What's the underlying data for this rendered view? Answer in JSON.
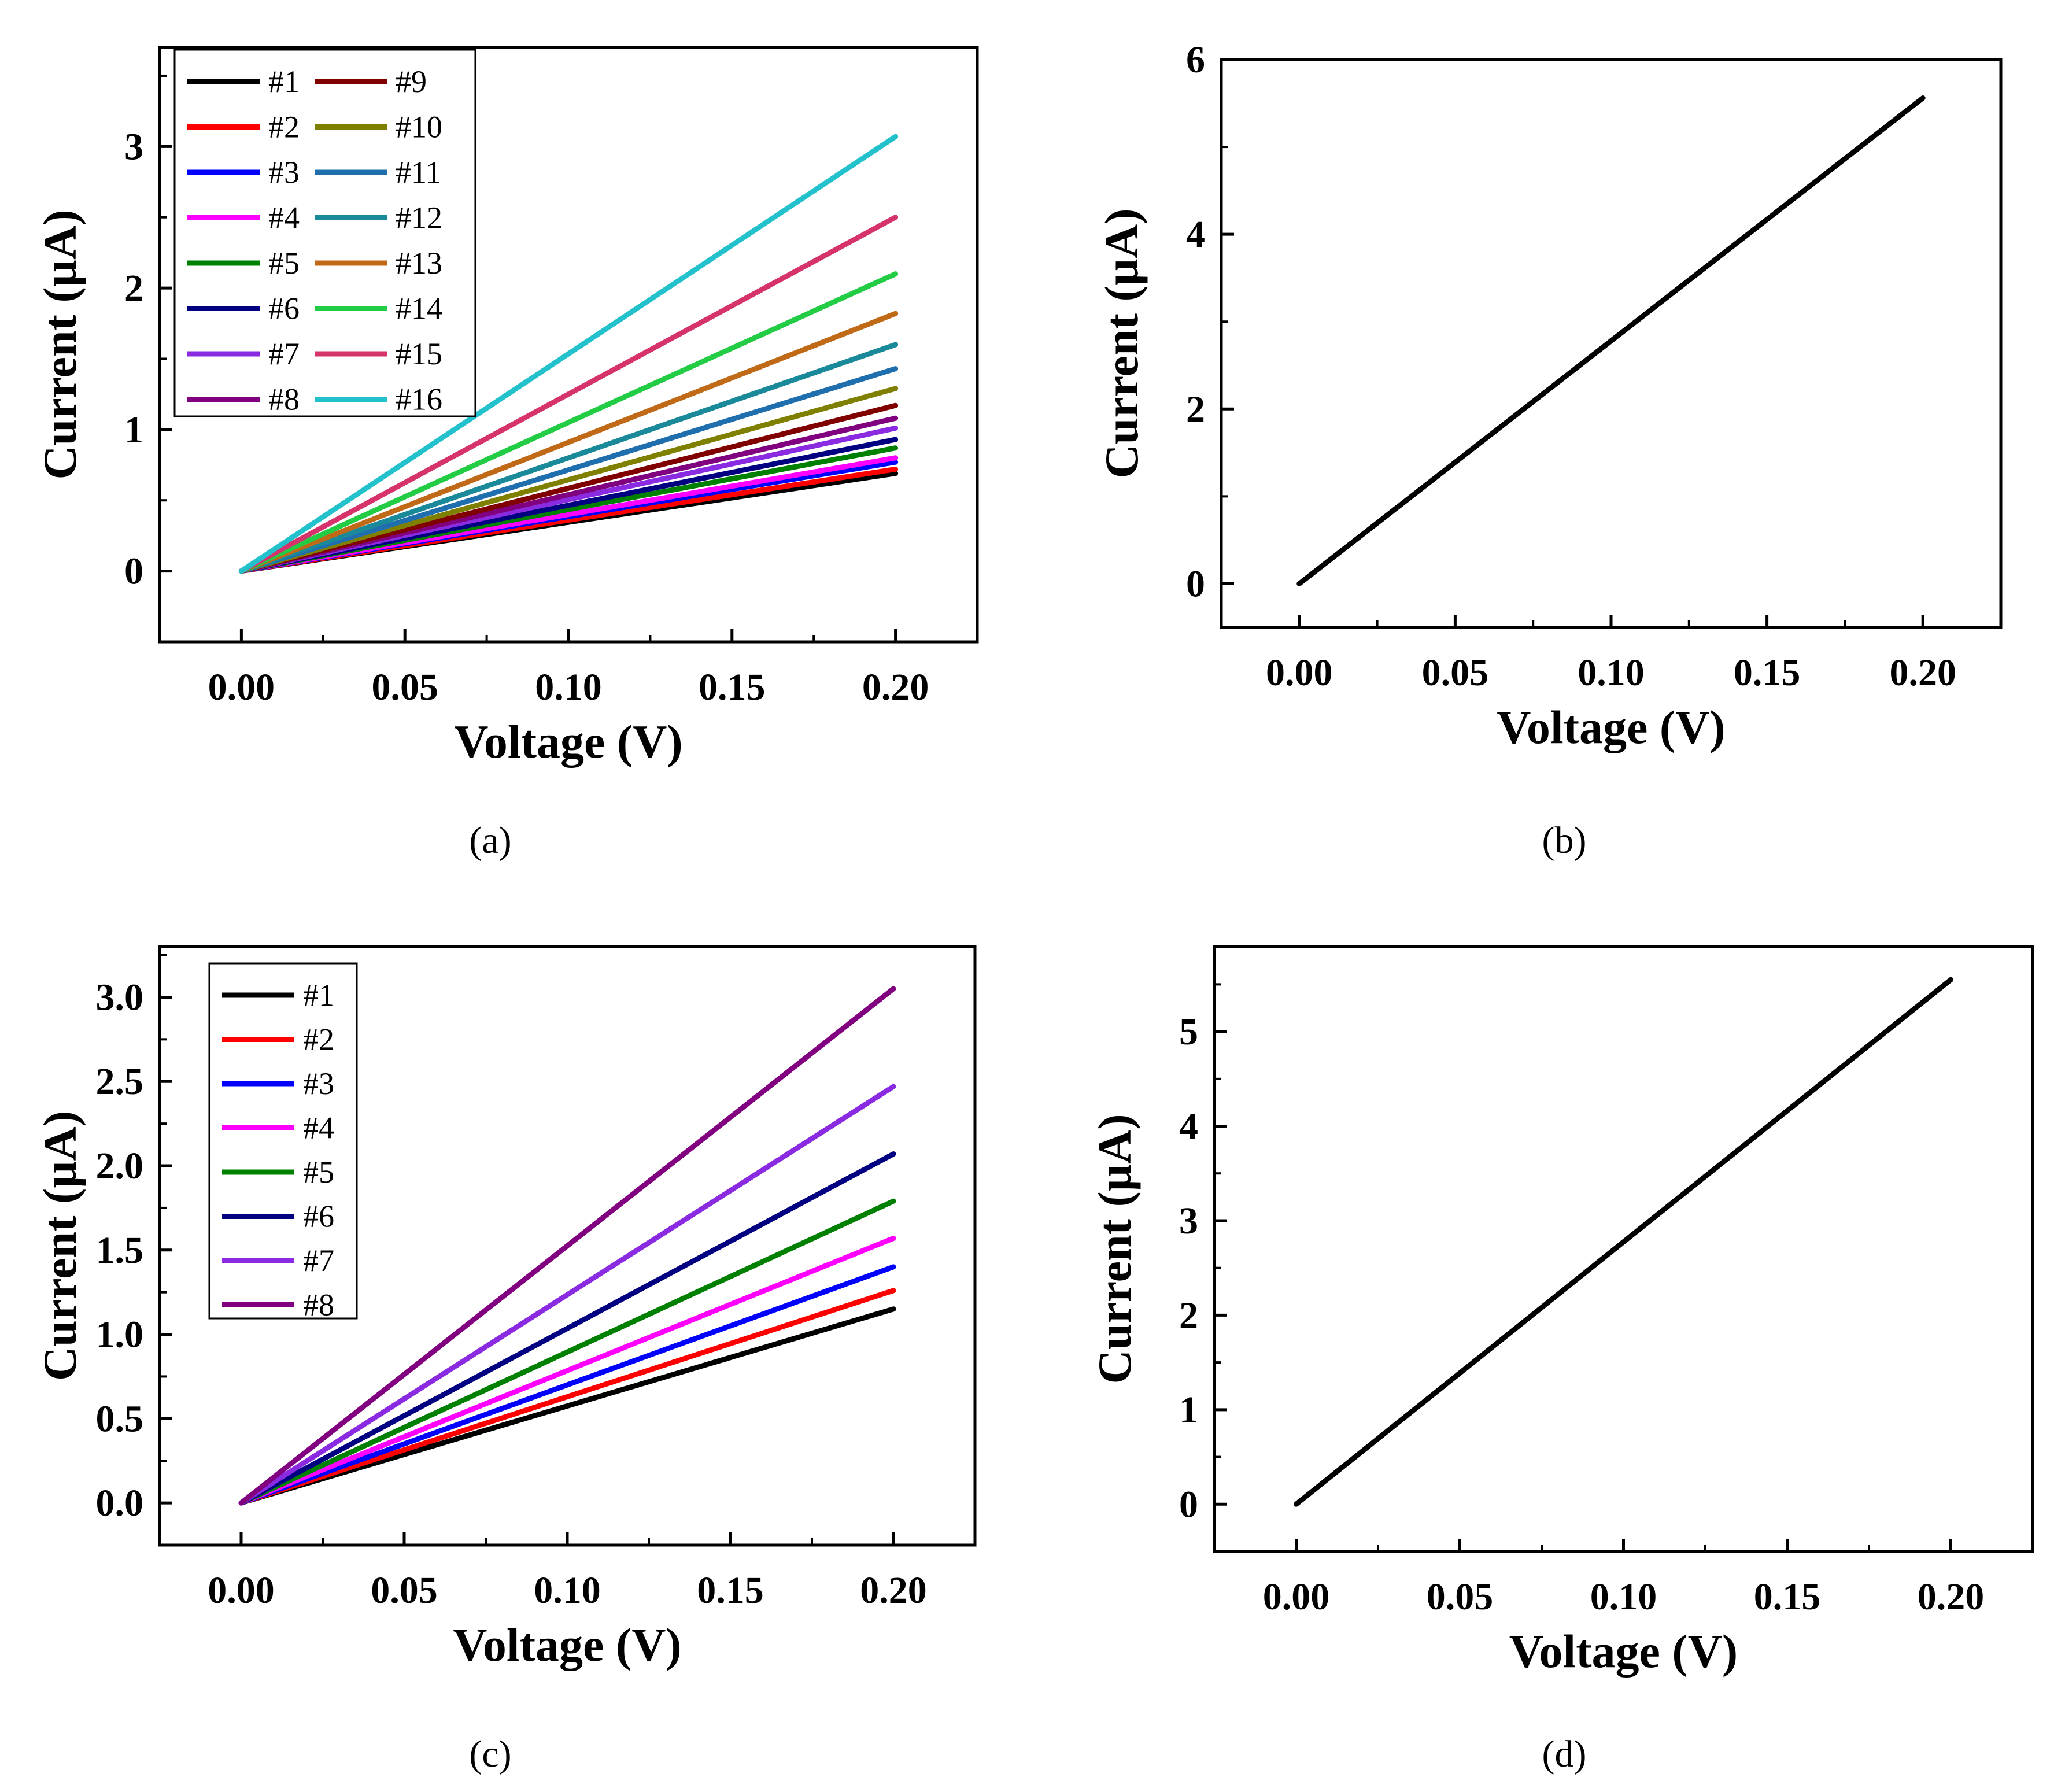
{
  "figure": {
    "panels": [
      "a",
      "b",
      "c",
      "d"
    ]
  },
  "chart_data": [
    {
      "id": "a",
      "type": "line",
      "caption": "(a)",
      "xlabel": "Voltage (V)",
      "ylabel": "Current (µA)",
      "xlim": [
        -0.025,
        0.225
      ],
      "ylim": [
        -0.5,
        3.7
      ],
      "xticks": [
        0.0,
        0.05,
        0.1,
        0.15,
        0.2
      ],
      "xtick_labels": [
        "0.00",
        "0.05",
        "0.10",
        "0.15",
        "0.20"
      ],
      "yticks": [
        0,
        1,
        2,
        3
      ],
      "ytick_labels": [
        "0",
        "1",
        "2",
        "3"
      ],
      "legend": {
        "placement": "top-left",
        "columns": 2
      },
      "x": [
        0.0,
        0.2
      ],
      "series": [
        {
          "name": "#1",
          "color": "#000000",
          "values": [
            0,
            0.69
          ]
        },
        {
          "name": "#2",
          "color": "#ff0000",
          "values": [
            0,
            0.72
          ]
        },
        {
          "name": "#3",
          "color": "#0000ff",
          "values": [
            0,
            0.77
          ]
        },
        {
          "name": "#4",
          "color": "#ff00ff",
          "values": [
            0,
            0.8
          ]
        },
        {
          "name": "#5",
          "color": "#008000",
          "values": [
            0,
            0.87
          ]
        },
        {
          "name": "#6",
          "color": "#000080",
          "values": [
            0,
            0.93
          ]
        },
        {
          "name": "#7",
          "color": "#8a2be2",
          "values": [
            0,
            1.01
          ]
        },
        {
          "name": "#8",
          "color": "#800080",
          "values": [
            0,
            1.08
          ]
        },
        {
          "name": "#9",
          "color": "#800000",
          "values": [
            0,
            1.17
          ]
        },
        {
          "name": "#10",
          "color": "#808000",
          "values": [
            0,
            1.29
          ]
        },
        {
          "name": "#11",
          "color": "#1f6fae",
          "values": [
            0,
            1.43
          ]
        },
        {
          "name": "#12",
          "color": "#1a8a9a",
          "values": [
            0,
            1.6
          ]
        },
        {
          "name": "#13",
          "color": "#c06a18",
          "values": [
            0,
            1.82
          ]
        },
        {
          "name": "#14",
          "color": "#22cc44",
          "values": [
            0,
            2.1
          ]
        },
        {
          "name": "#15",
          "color": "#d6336c",
          "values": [
            0,
            2.5
          ]
        },
        {
          "name": "#16",
          "color": "#22c1cc",
          "values": [
            0,
            3.07
          ]
        }
      ]
    },
    {
      "id": "b",
      "type": "line",
      "caption": "(b)",
      "xlabel": "Voltage (V)",
      "ylabel": "Current (µA)",
      "xlim": [
        -0.025,
        0.225
      ],
      "ylim": [
        -0.5,
        6.0
      ],
      "xticks": [
        0.0,
        0.05,
        0.1,
        0.15,
        0.2
      ],
      "xtick_labels": [
        "0.00",
        "0.05",
        "0.10",
        "0.15",
        "0.20"
      ],
      "yticks": [
        0,
        2,
        4,
        6
      ],
      "ytick_labels": [
        "0",
        "2",
        "4",
        "6"
      ],
      "legend": null,
      "x": [
        0.0,
        0.2
      ],
      "series": [
        {
          "name": "",
          "color": "#000000",
          "values": [
            0,
            5.56
          ]
        }
      ]
    },
    {
      "id": "c",
      "type": "line",
      "caption": "(c)",
      "xlabel": "Voltage (V)",
      "ylabel": "Current (µA)",
      "xlim": [
        -0.025,
        0.225
      ],
      "ylim": [
        -0.25,
        3.3
      ],
      "xticks": [
        0.0,
        0.05,
        0.1,
        0.15,
        0.2
      ],
      "xtick_labels": [
        "0.00",
        "0.05",
        "0.10",
        "0.15",
        "0.20"
      ],
      "yticks": [
        0.0,
        0.5,
        1.0,
        1.5,
        2.0,
        2.5,
        3.0
      ],
      "ytick_labels": [
        "0.0",
        "0.5",
        "1.0",
        "1.5",
        "2.0",
        "2.5",
        "3.0"
      ],
      "legend": {
        "placement": "top-left",
        "columns": 1
      },
      "x": [
        0.0,
        0.2
      ],
      "series": [
        {
          "name": "#1",
          "color": "#000000",
          "values": [
            0,
            1.15
          ]
        },
        {
          "name": "#2",
          "color": "#ff0000",
          "values": [
            0,
            1.26
          ]
        },
        {
          "name": "#3",
          "color": "#0000ff",
          "values": [
            0,
            1.4
          ]
        },
        {
          "name": "#4",
          "color": "#ff00ff",
          "values": [
            0,
            1.57
          ]
        },
        {
          "name": "#5",
          "color": "#008000",
          "values": [
            0,
            1.79
          ]
        },
        {
          "name": "#6",
          "color": "#000080",
          "values": [
            0,
            2.07
          ]
        },
        {
          "name": "#7",
          "color": "#8a2be2",
          "values": [
            0,
            2.47
          ]
        },
        {
          "name": "#8",
          "color": "#800080",
          "values": [
            0,
            3.05
          ]
        }
      ]
    },
    {
      "id": "d",
      "type": "line",
      "caption": "(d)",
      "xlabel": "Voltage (V)",
      "ylabel": "Current (µA)",
      "xlim": [
        -0.025,
        0.225
      ],
      "ylim": [
        -0.5,
        5.9
      ],
      "xticks": [
        0.0,
        0.05,
        0.1,
        0.15,
        0.2
      ],
      "xtick_labels": [
        "0.00",
        "0.05",
        "0.10",
        "0.15",
        "0.20"
      ],
      "yticks": [
        0,
        1,
        2,
        3,
        4,
        5
      ],
      "ytick_labels": [
        "0",
        "1",
        "2",
        "3",
        "4",
        "5"
      ],
      "legend": null,
      "x": [
        0.0,
        0.2
      ],
      "series": [
        {
          "name": "",
          "color": "#000000",
          "values": [
            0,
            5.55
          ]
        }
      ]
    }
  ]
}
